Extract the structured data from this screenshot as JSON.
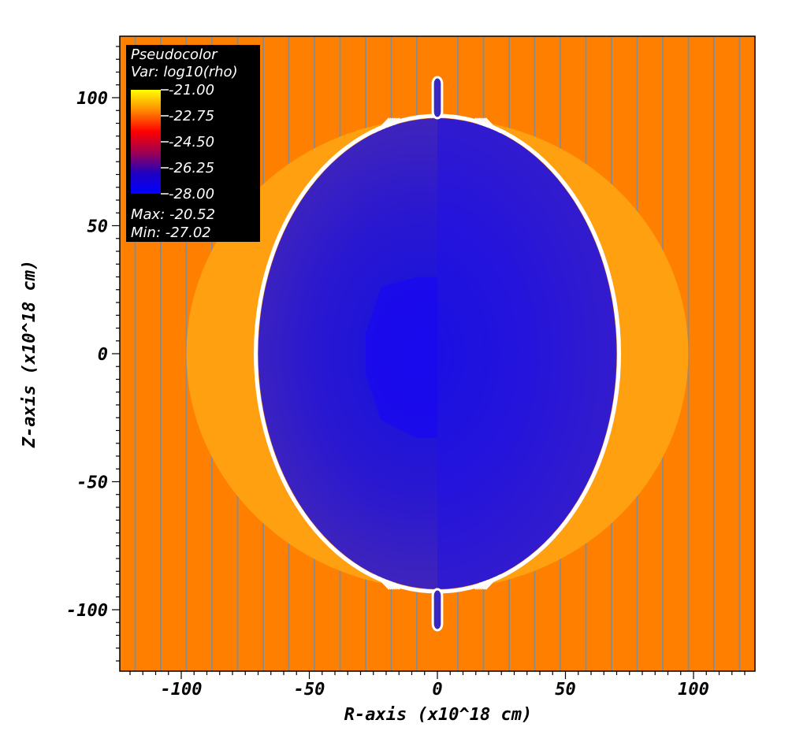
{
  "chart_data": {
    "type": "heatmap",
    "xlabel": "R-axis (x10^18 cm)",
    "ylabel": "Z-axis (x10^18 cm)",
    "xlim": [
      -124,
      124
    ],
    "ylim": [
      -124,
      124
    ],
    "x_ticks": [
      -100,
      -50,
      0,
      50,
      100
    ],
    "y_ticks": [
      100,
      50,
      0,
      -50,
      -100
    ],
    "x_tick_labels": [
      "-100",
      "-50",
      "0",
      "50",
      "100"
    ],
    "y_tick_labels": [
      "100",
      "50",
      "0",
      "-50",
      "-100"
    ],
    "colormap": {
      "stops": [
        "#ffff00",
        "#ff8800",
        "#ff0000",
        "#a00050",
        "#2000c0",
        "#0000ff"
      ]
    },
    "legend": {
      "title": "Pseudocolor",
      "variable": "Var: log10(rho)",
      "levels": [
        "-21.00",
        "-22.75",
        "-24.50",
        "-26.25",
        "-28.00"
      ],
      "max_label": "Max: -20.52",
      "min_label": "Min: -27.02",
      "placement": "top-left"
    },
    "regions": {
      "ambient": {
        "color": "#ff8000",
        "log10_rho": -21.5
      },
      "shocked_shell": {
        "color": "#ffa010",
        "radius_r": 98,
        "radius_z": 92
      },
      "cavity": {
        "color": "#3a1ec8",
        "half_width_r": 70,
        "half_height_z": 92,
        "log10_rho": -26.3
      },
      "jet": {
        "z_extent": [
          92,
          108
        ]
      }
    },
    "streamline_x": [
      -118,
      -108,
      -98,
      -88,
      -78,
      -68,
      -58,
      -48,
      -38,
      -28,
      -18,
      -8,
      8,
      18,
      28,
      38,
      48,
      58,
      68,
      78,
      88,
      98,
      108,
      118
    ]
  }
}
